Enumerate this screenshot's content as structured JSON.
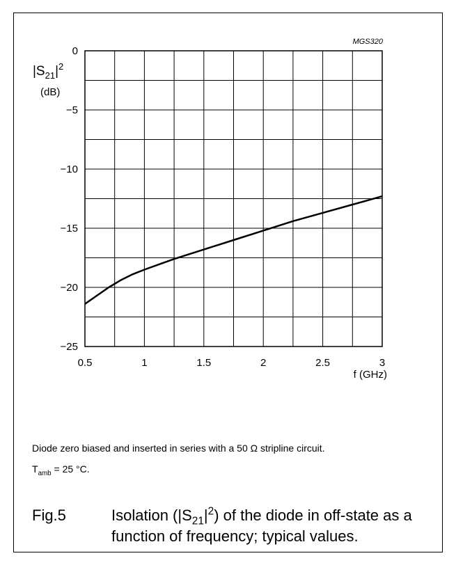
{
  "chart_data": {
    "type": "line",
    "code": "MGS320",
    "xlabel": "f (GHz)",
    "ylabel_main": "|S",
    "ylabel_sub": "21",
    "ylabel_sup": "2",
    "ylabel_unit": "(dB)",
    "xlim": [
      0.5,
      3
    ],
    "ylim": [
      -25,
      0
    ],
    "x_ticks": [
      0.5,
      1,
      1.5,
      2,
      2.5,
      3
    ],
    "x_tick_labels": [
      "0.5",
      "1",
      "1.5",
      "2",
      "2.5",
      "3"
    ],
    "y_ticks": [
      0,
      -5,
      -10,
      -15,
      -20,
      -25
    ],
    "y_tick_labels": [
      "0",
      "−5",
      "−10",
      "−15",
      "−20",
      "−25"
    ],
    "grid": true,
    "series": [
      {
        "x": [
          0.5,
          0.6,
          0.7,
          0.8,
          0.9,
          1.0,
          1.25,
          1.5,
          1.75,
          2.0,
          2.25,
          2.5,
          2.75,
          3.0
        ],
        "y": [
          -21.4,
          -20.7,
          -20.0,
          -19.4,
          -18.9,
          -18.5,
          -17.6,
          -16.8,
          -16.0,
          -15.2,
          -14.4,
          -13.7,
          -13.0,
          -12.3
        ]
      }
    ]
  },
  "note": {
    "line1": "Diode zero biased and inserted in series with a 50 Ω stripline circuit.",
    "t_main": "T",
    "t_sub": "amb",
    "t_rest": " = 25 °C."
  },
  "caption": {
    "fig": "Fig.5",
    "text1": "Isolation (|S",
    "text_sub": "21",
    "text2": "|",
    "text_sup": "2",
    "text3": ") of the diode in off-state as a function of frequency; typical values."
  }
}
